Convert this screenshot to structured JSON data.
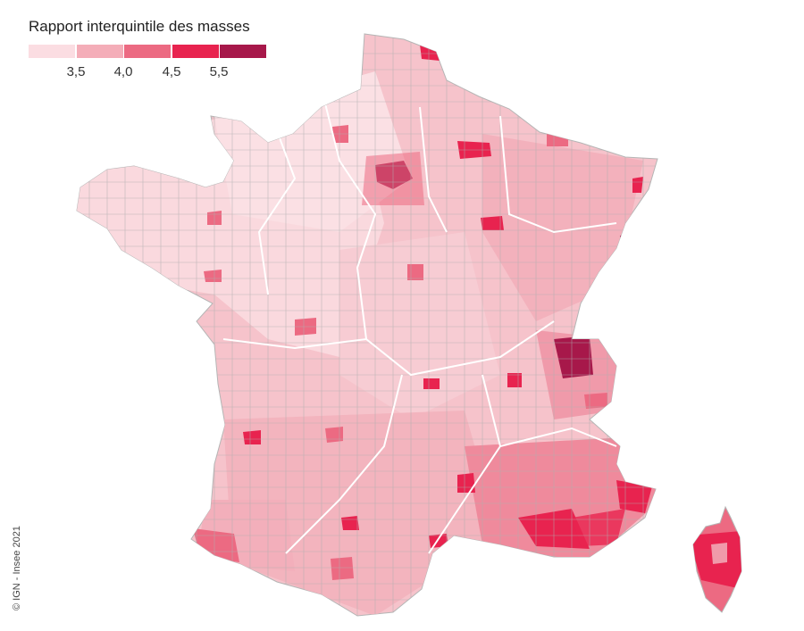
{
  "legend": {
    "title": "Rapport interquintile des masses",
    "classes": [
      {
        "color": "#fbdde2"
      },
      {
        "color": "#f4adb8"
      },
      {
        "color": "#ec6a82"
      },
      {
        "color": "#e8234f"
      },
      {
        "color": "#a7184a"
      }
    ],
    "ticks": [
      "3,5",
      "4,0",
      "4,5",
      "5,5"
    ]
  },
  "map": {
    "subject": "France métropolitaine et Corse",
    "background": "#ffffff",
    "border_color": "#a9a9a9",
    "region_border_color": "#ffffff"
  },
  "credit": "© IGN - Insee 2021"
}
